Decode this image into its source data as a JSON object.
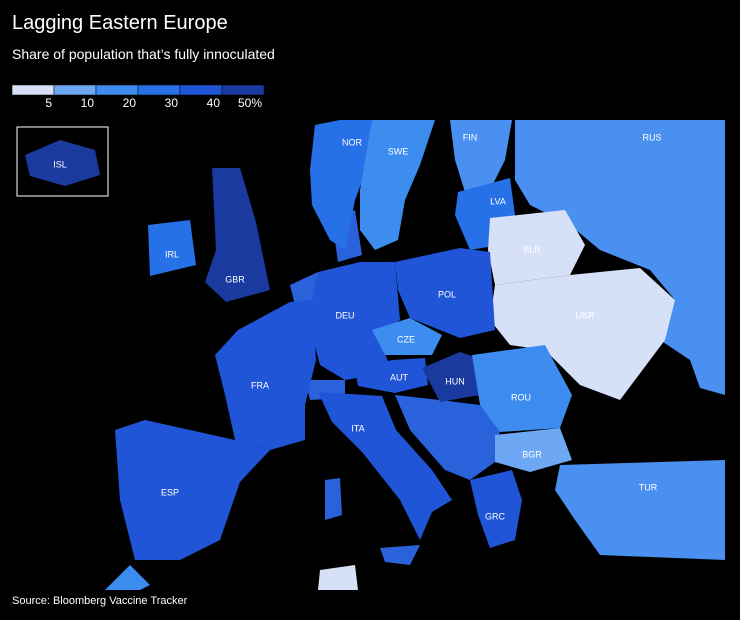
{
  "header": {
    "title": "Lagging Eastern Europe",
    "subtitle": "Share of population that’s fully innoculated"
  },
  "legend": {
    "colors": [
      "#d6e1f8",
      "#6ea8f5",
      "#3d8cf0",
      "#2670e8",
      "#1f55d6",
      "#1a3aa0"
    ],
    "labels": [
      "5",
      "10",
      "20",
      "30",
      "40",
      "50%"
    ]
  },
  "countries": [
    {
      "label": "RUS",
      "color": "#4a90f0"
    },
    {
      "label": "FIN",
      "color": "#4a90f0"
    },
    {
      "label": "NOR",
      "color": "#2670e8"
    },
    {
      "label": "SWE",
      "color": "#3d8cf0"
    },
    {
      "label": "LVA",
      "color": "#2670e8"
    },
    {
      "label": "BLR",
      "color": "#d6e1f8"
    },
    {
      "label": "UKR",
      "color": "#d6e1f8"
    },
    {
      "label": "POL",
      "color": "#1f55d6"
    },
    {
      "label": "DEU",
      "color": "#1f55d6"
    },
    {
      "label": "CZE",
      "color": "#3d8cf0"
    },
    {
      "label": "AUT",
      "color": "#1f55d6"
    },
    {
      "label": "HUN",
      "color": "#1a3aa0"
    },
    {
      "label": "ROU",
      "color": "#3d8cf0"
    },
    {
      "label": "BGR",
      "color": "#6ea8f5"
    },
    {
      "label": "GRC",
      "color": "#1f55d6"
    },
    {
      "label": "ITA",
      "color": "#1f55d6"
    },
    {
      "label": "FRA",
      "color": "#1f55d6"
    },
    {
      "label": "ESP",
      "color": "#1f55d6"
    },
    {
      "label": "GBR",
      "color": "#1a3aa0"
    },
    {
      "label": "IRL",
      "color": "#2670e8"
    },
    {
      "label": "TUR",
      "color": "#4a90f0"
    },
    {
      "label": "ISL",
      "color": "#1a3aa0"
    }
  ],
  "footer": {
    "source": "Source: Bloomberg Vaccine Tracker"
  }
}
